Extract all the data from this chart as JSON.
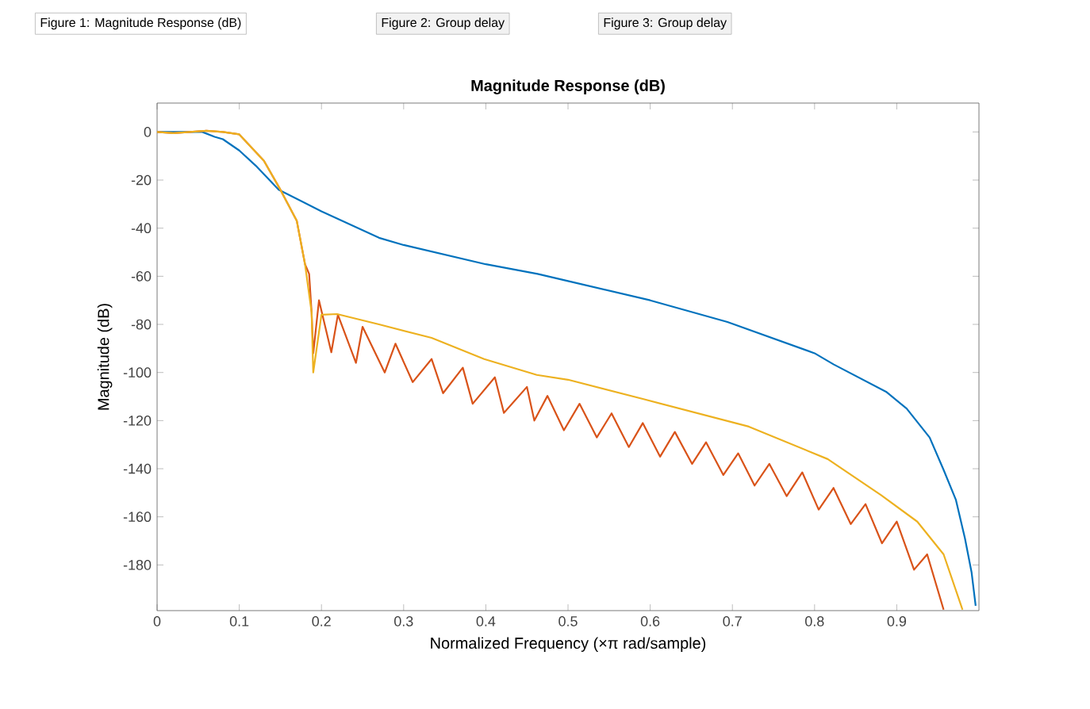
{
  "chart_data": {
    "type": "line",
    "title": "Magnitude Response (dB)",
    "xlabel": "Normalized Frequency (×π rad/sample)",
    "ylabel": "Magnitude (dB)",
    "annotations": [
      "Figure 1: Magnitude Response (dB)",
      "Figure 2: Group delay",
      "Figure 3: Group delay"
    ],
    "xlim": [
      0,
      1
    ],
    "ylim": [
      -199,
      12
    ],
    "xticks": [
      0,
      0.1,
      0.2,
      0.3,
      0.4,
      0.5,
      0.6,
      0.7,
      0.8,
      0.9
    ],
    "yticks": [
      -180,
      -160,
      -140,
      -120,
      -100,
      -80,
      -60,
      -40,
      -20,
      0
    ],
    "grid": false,
    "marker": "none",
    "line_style": "solid",
    "series": [
      {
        "color": "#0072bd",
        "x": [
          0,
          0.03,
          0.055,
          0.07,
          0.08,
          0.1,
          0.12,
          0.148,
          0.2,
          0.27,
          0.3,
          0.4,
          0.463,
          0.5,
          0.6,
          0.694,
          0.8,
          0.823,
          0.887,
          0.912,
          0.94,
          0.957,
          0.972,
          0.983,
          0.991,
          0.996
        ],
        "values": [
          0,
          0,
          0,
          -2,
          -3,
          -7.7,
          -14,
          -24,
          -33,
          -44,
          -47,
          -55,
          -59,
          -62,
          -70,
          -79,
          -92,
          -96.6,
          -108,
          -115,
          -127,
          -140.5,
          -153,
          -169,
          -183,
          -197
        ]
      },
      {
        "color": "#d95319",
        "x": [
          0,
          0.02,
          0.04,
          0.06,
          0.08,
          0.1,
          0.13,
          0.15,
          0.17,
          0.18,
          0.185,
          0.188,
          0.19,
          0.197,
          0.212,
          0.22,
          0.242,
          0.25,
          0.277,
          0.29,
          0.311,
          0.334,
          0.348,
          0.372,
          0.384,
          0.411,
          0.422,
          0.45,
          0.459,
          0.475,
          0.495,
          0.514,
          0.535,
          0.553,
          0.574,
          0.591,
          0.612,
          0.63,
          0.651,
          0.668,
          0.689,
          0.707,
          0.727,
          0.745,
          0.766,
          0.785,
          0.805,
          0.823,
          0.844,
          0.862,
          0.882,
          0.9,
          0.921,
          0.937,
          0.957
        ],
        "values": [
          0,
          -0.5,
          0,
          0.5,
          0,
          -1,
          -12,
          -24,
          -37,
          -55,
          -59,
          -75,
          -92,
          -70,
          -91.6,
          -76,
          -96,
          -81,
          -100,
          -88,
          -104,
          -94.4,
          -108.6,
          -98,
          -113,
          -102,
          -116.8,
          -106,
          -120,
          -109.7,
          -124,
          -113,
          -127,
          -117,
          -131,
          -121,
          -135,
          -124.7,
          -138,
          -129,
          -142.6,
          -133.6,
          -147,
          -138,
          -151.4,
          -141.5,
          -157,
          -148,
          -163,
          -154.7,
          -171,
          -162,
          -182,
          -175.6,
          -198.6
        ]
      },
      {
        "color": "#edb120",
        "x": [
          0,
          0.02,
          0.04,
          0.06,
          0.08,
          0.1,
          0.13,
          0.15,
          0.17,
          0.18,
          0.188,
          0.19,
          0.2,
          0.219,
          0.27,
          0.334,
          0.398,
          0.462,
          0.5,
          0.591,
          0.72,
          0.816,
          0.881,
          0.925,
          0.957,
          0.98
        ],
        "values": [
          0,
          -0.5,
          0,
          0.5,
          0,
          -1,
          -12,
          -24,
          -37,
          -55,
          -75,
          -100,
          -76,
          -75.7,
          -80,
          -85.6,
          -94.4,
          -101,
          -103,
          -111,
          -122.5,
          -136,
          -151,
          -162,
          -175.6,
          -198.6
        ]
      }
    ]
  }
}
